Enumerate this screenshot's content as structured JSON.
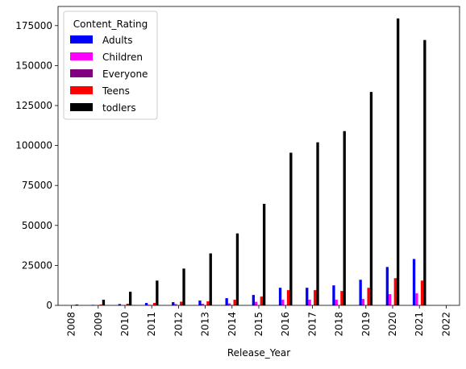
{
  "chart_data": {
    "type": "bar",
    "xlabel": "Release_Year",
    "ylabel": "",
    "categories": [
      "2008",
      "2009",
      "2010",
      "2011",
      "2012",
      "2013",
      "2014",
      "2015",
      "2016",
      "2017",
      "2018",
      "2019",
      "2020",
      "2021",
      "2022"
    ],
    "ylim": [
      0,
      187000
    ],
    "yticks": [
      0,
      25000,
      50000,
      75000,
      100000,
      125000,
      150000,
      175000
    ],
    "ytick_labels": [
      "0",
      "25000",
      "50000",
      "75000",
      "100000",
      "125000",
      "150000",
      "175000"
    ],
    "grid": false,
    "legend": {
      "title": "Content_Rating",
      "placement": "top-left"
    },
    "series": [
      {
        "name": "Adults",
        "color": "#0000ff",
        "values": [
          100,
          300,
          800,
          1500,
          2000,
          3000,
          4500,
          6500,
          11000,
          11000,
          12500,
          16000,
          24000,
          29000,
          0
        ]
      },
      {
        "name": "Children",
        "color": "#ff00ff",
        "values": [
          0,
          100,
          200,
          400,
          800,
          1000,
          1200,
          2200,
          3500,
          3500,
          3500,
          4000,
          7000,
          7500,
          0
        ]
      },
      {
        "name": "Everyone",
        "color": "#800080",
        "values": [
          0,
          0,
          0,
          0,
          0,
          0,
          0,
          0,
          0,
          0,
          0,
          0,
          0,
          0,
          0
        ]
      },
      {
        "name": "Teens",
        "color": "#ff0000",
        "values": [
          200,
          500,
          1000,
          1500,
          2300,
          2500,
          3500,
          5500,
          9500,
          9500,
          9000,
          11000,
          17000,
          15500,
          0
        ]
      },
      {
        "name": "todlers",
        "color": "#000000",
        "values": [
          500,
          3500,
          8500,
          15500,
          23000,
          32500,
          45000,
          63500,
          95500,
          102000,
          109000,
          133500,
          179500,
          166000,
          0
        ]
      }
    ]
  }
}
